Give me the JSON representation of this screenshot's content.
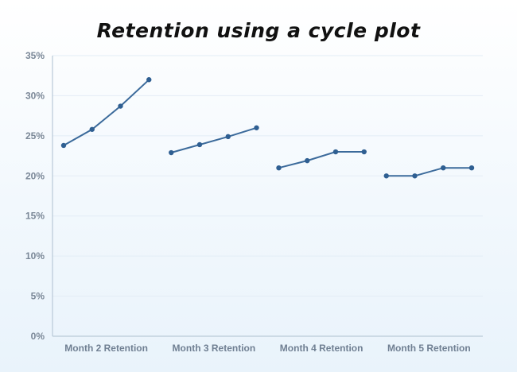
{
  "title": "Retention using a cycle plot",
  "colors": {
    "line": "#3b6a9b",
    "point": "#2f5f92",
    "axis": "#b9c9d8",
    "grid": "#e3edf6"
  },
  "chart_data": {
    "type": "line",
    "title": "Retention using a cycle plot",
    "xlabel": "",
    "ylabel": "",
    "ylim": [
      0,
      35
    ],
    "yticks": [
      0,
      5,
      10,
      15,
      20,
      25,
      30,
      35
    ],
    "ytick_labels": [
      "0%",
      "5%",
      "10%",
      "15%",
      "20%",
      "25%",
      "30%",
      "35%"
    ],
    "grid": true,
    "categories": [
      "Month 2 Retention",
      "Month 3 Retention",
      "Month 4 Retention",
      "Month 5 Retention"
    ],
    "series": [
      {
        "values": [
          23.8,
          25.8,
          28.7,
          32.0
        ]
      },
      {
        "values": [
          22.9,
          23.9,
          24.9,
          26.0
        ]
      },
      {
        "values": [
          21.0,
          21.9,
          23.0,
          23.0
        ]
      },
      {
        "values": [
          20.0,
          20.0,
          21.0,
          21.0
        ]
      }
    ]
  }
}
